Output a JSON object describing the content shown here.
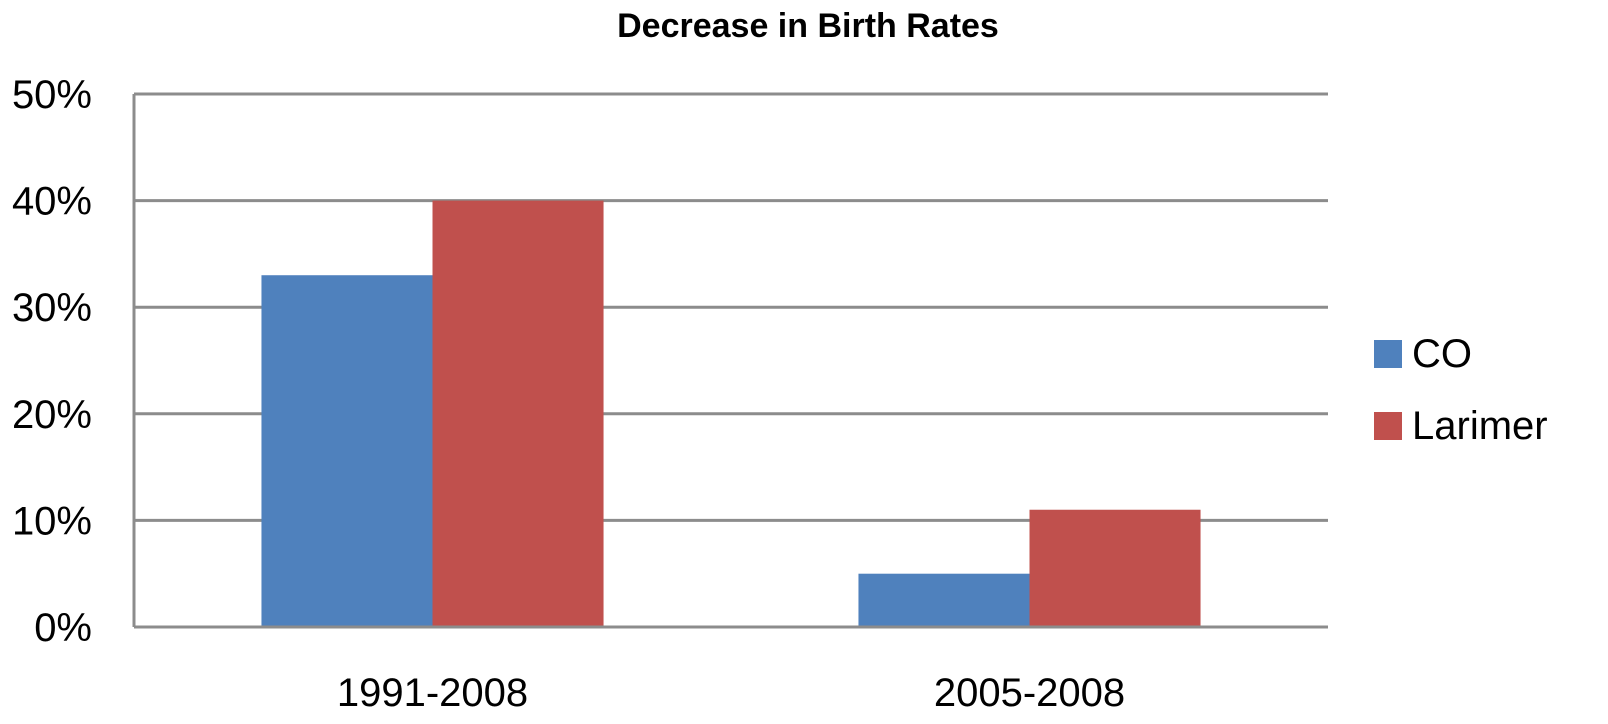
{
  "chart_data": {
    "type": "bar",
    "title": "Decrease in Birth Rates",
    "xlabel": "",
    "ylabel": "",
    "categories": [
      "1991-2008",
      "2005-2008"
    ],
    "series": [
      {
        "name": "CO",
        "values": [
          33,
          5
        ],
        "color": "#4F81BD"
      },
      {
        "name": "Larimer",
        "values": [
          40,
          11
        ],
        "color": "#C0504D"
      }
    ],
    "ylim": [
      0,
      50
    ],
    "yticks": [
      "0%",
      "10%",
      "20%",
      "30%",
      "40%",
      "50%"
    ],
    "grid": true,
    "legend_position": "right"
  }
}
